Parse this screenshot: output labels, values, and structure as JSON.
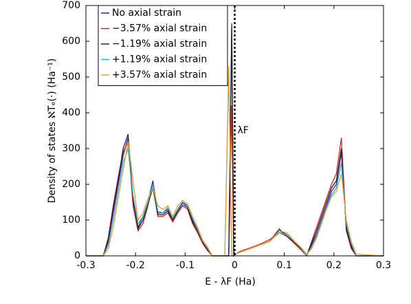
{
  "chart_data": {
    "type": "line",
    "x_label": "E - λF (Ha)",
    "y_label": "Density of states ℵTₑ(·) (Ha⁻¹)",
    "annotation": "λF",
    "fermi_line_x": 0,
    "xlim": [
      -0.3,
      0.3
    ],
    "xticks": [
      -0.3,
      -0.2,
      -0.1,
      0,
      0.1,
      0.2,
      0.3
    ],
    "ylim": [
      0,
      700
    ],
    "yticks": [
      0,
      100,
      200,
      300,
      400,
      500,
      600,
      700
    ],
    "legend": "upper left",
    "x": [
      -0.3,
      -0.265,
      -0.255,
      -0.245,
      -0.235,
      -0.225,
      -0.215,
      -0.205,
      -0.195,
      -0.185,
      -0.175,
      -0.165,
      -0.155,
      -0.145,
      -0.135,
      -0.125,
      -0.115,
      -0.105,
      -0.095,
      -0.085,
      -0.075,
      -0.065,
      -0.055,
      -0.045,
      -0.035,
      -0.02,
      -0.012,
      -0.006,
      -0.002,
      0.002,
      0.01,
      0.03,
      0.05,
      0.07,
      0.09,
      0.105,
      0.12,
      0.135,
      0.145,
      0.155,
      0.165,
      0.175,
      0.185,
      0.195,
      0.205,
      0.215,
      0.225,
      0.235,
      0.245,
      0.3
    ],
    "series": [
      {
        "name": "No axial strain",
        "color": "#2222cc",
        "values": [
          0,
          0,
          40,
          120,
          200,
          280,
          330,
          150,
          80,
          110,
          150,
          210,
          120,
          120,
          130,
          100,
          130,
          150,
          140,
          100,
          70,
          40,
          20,
          0,
          0,
          0,
          0,
          650,
          0,
          5,
          10,
          20,
          30,
          40,
          70,
          60,
          40,
          20,
          0,
          30,
          60,
          100,
          140,
          180,
          200,
          290,
          80,
          30,
          0,
          0
        ]
      },
      {
        "name": "−3.57% axial strain",
        "color": "#e02020",
        "values": [
          0,
          0,
          50,
          140,
          220,
          290,
          320,
          140,
          70,
          90,
          140,
          200,
          110,
          110,
          120,
          95,
          120,
          140,
          130,
          90,
          65,
          35,
          15,
          0,
          0,
          0,
          0,
          420,
          0,
          5,
          12,
          22,
          32,
          45,
          65,
          55,
          35,
          15,
          0,
          40,
          80,
          120,
          160,
          200,
          230,
          330,
          70,
          20,
          0,
          0
        ]
      },
      {
        "name": "−1.19% axial strain",
        "color": "#222222",
        "values": [
          0,
          0,
          45,
          130,
          210,
          300,
          340,
          160,
          75,
          100,
          145,
          190,
          115,
          115,
          125,
          100,
          125,
          145,
          135,
          95,
          70,
          40,
          18,
          0,
          0,
          0,
          0,
          640,
          0,
          5,
          10,
          20,
          30,
          40,
          75,
          55,
          38,
          18,
          0,
          35,
          70,
          110,
          150,
          190,
          210,
          300,
          75,
          25,
          0,
          0
        ]
      },
      {
        "name": "+1.19% axial strain",
        "color": "#22b0e0",
        "values": [
          0,
          0,
          30,
          100,
          180,
          260,
          300,
          170,
          90,
          110,
          150,
          200,
          125,
          120,
          135,
          105,
          130,
          145,
          140,
          105,
          75,
          42,
          22,
          0,
          0,
          0,
          520,
          0,
          0,
          5,
          10,
          20,
          30,
          40,
          65,
          60,
          40,
          20,
          0,
          25,
          55,
          95,
          135,
          170,
          190,
          260,
          90,
          35,
          0,
          0
        ]
      },
      {
        "name": "+3.57% axial strain",
        "color": "#f0a020",
        "values": [
          0,
          0,
          20,
          80,
          160,
          240,
          320,
          210,
          100,
          120,
          160,
          190,
          140,
          130,
          140,
          110,
          140,
          155,
          145,
          110,
          80,
          45,
          25,
          0,
          0,
          0,
          530,
          0,
          0,
          5,
          10,
          20,
          30,
          40,
          70,
          65,
          42,
          22,
          5,
          20,
          50,
          90,
          130,
          165,
          180,
          230,
          100,
          40,
          5,
          0
        ]
      }
    ]
  }
}
